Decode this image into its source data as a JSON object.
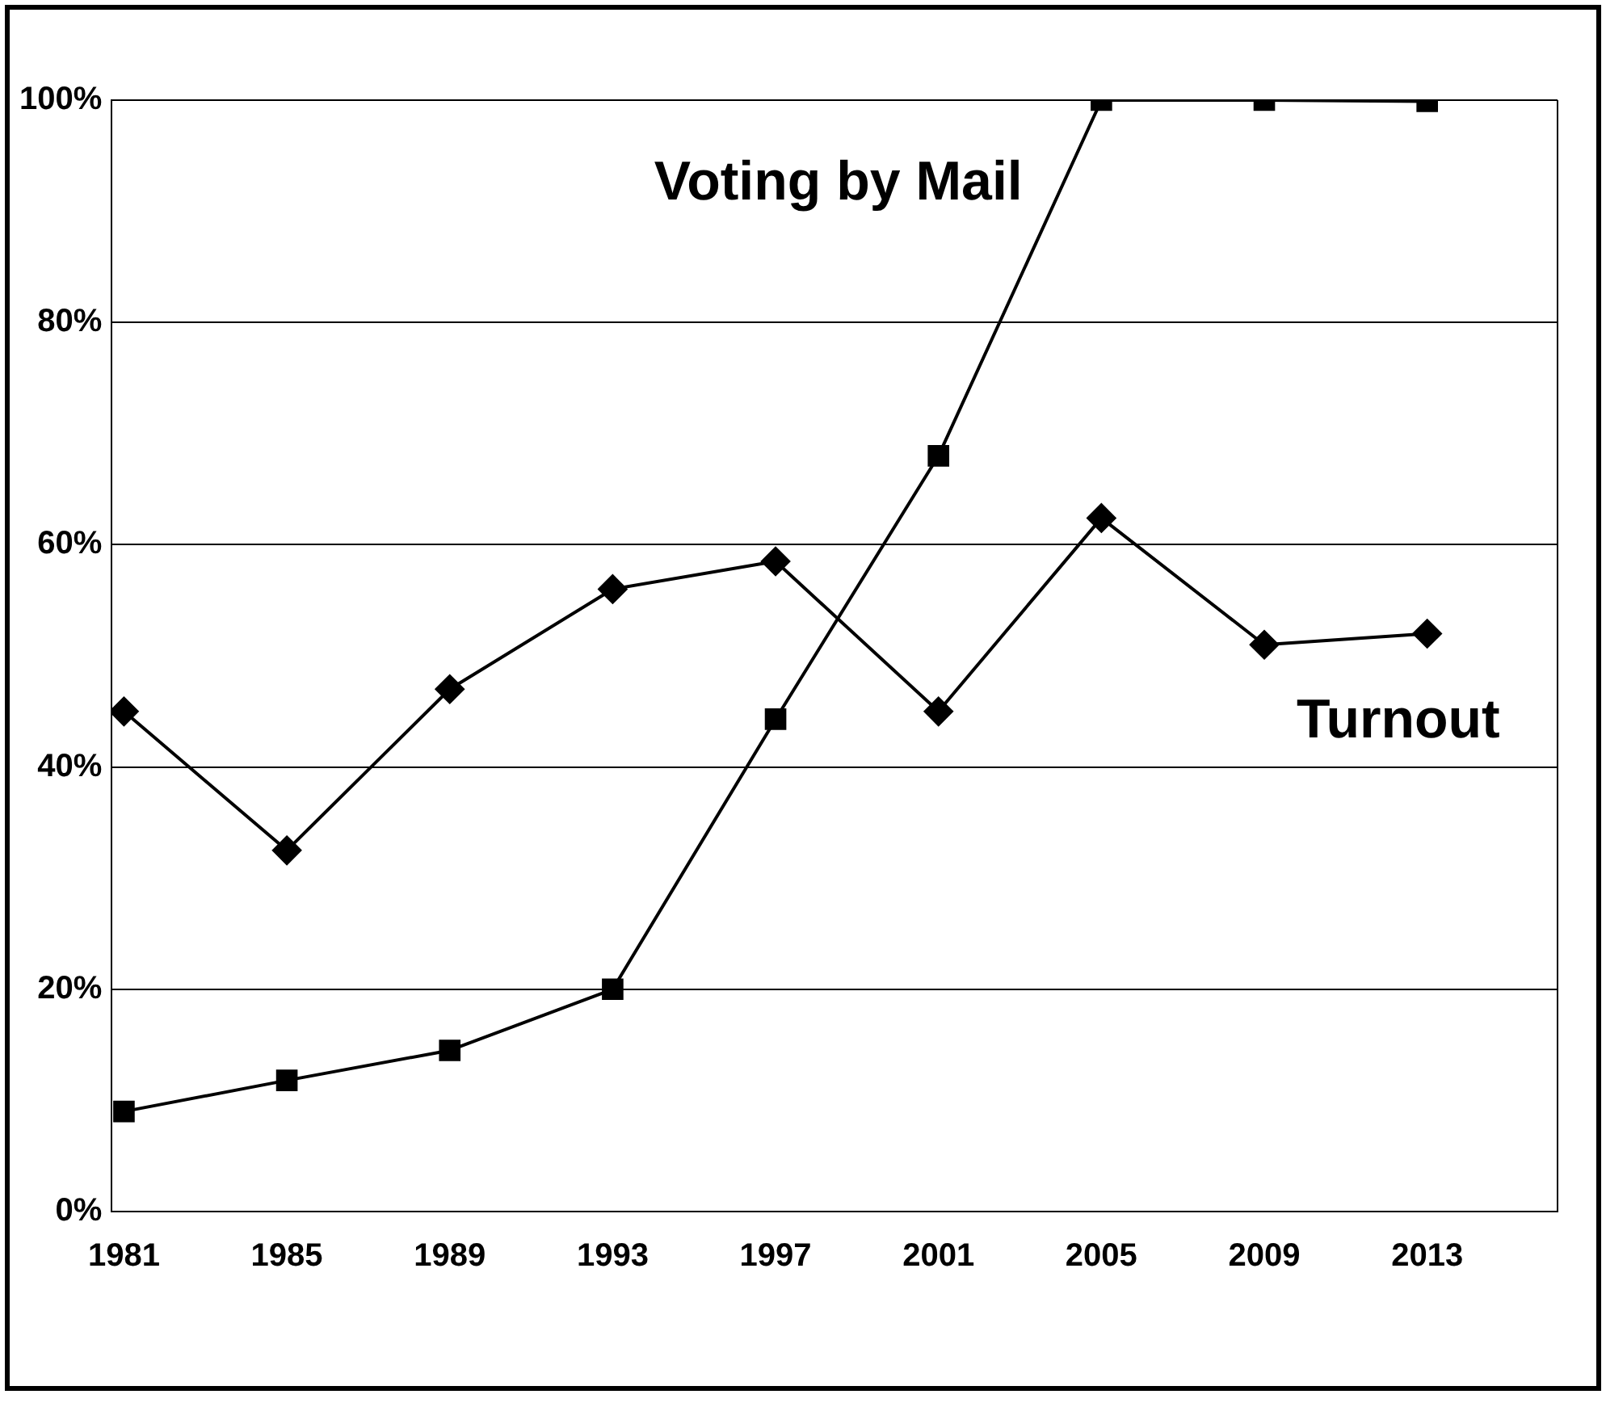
{
  "chart_data": {
    "type": "line",
    "x": [
      1981,
      1985,
      1989,
      1993,
      1997,
      2001,
      2005,
      2009,
      2013
    ],
    "series": [
      {
        "name": "Voting by Mail",
        "color": "#000000",
        "marker": "square",
        "values": [
          9,
          11.8,
          14.5,
          20,
          44.3,
          68,
          100,
          100,
          99.9
        ]
      },
      {
        "name": "Turnout",
        "color": "#000000",
        "marker": "diamond",
        "values": [
          45,
          32.5,
          47,
          56,
          58.5,
          45,
          62.4,
          51,
          52
        ]
      }
    ],
    "xlim": [
      1980.7,
      2016.2
    ],
    "xticks": [
      1981,
      1985,
      1989,
      1993,
      1997,
      2001,
      2005,
      2009,
      2013
    ],
    "ylim": [
      0,
      100
    ],
    "yticks": [
      {
        "value": 0,
        "label": "0%"
      },
      {
        "value": 20,
        "label": "20%"
      },
      {
        "value": 40,
        "label": "40%"
      },
      {
        "value": 60,
        "label": "60%"
      },
      {
        "value": 80,
        "label": "80%"
      },
      {
        "value": 100,
        "label": "100%"
      }
    ],
    "grid": "y",
    "legend": false,
    "line_style": "solid"
  }
}
